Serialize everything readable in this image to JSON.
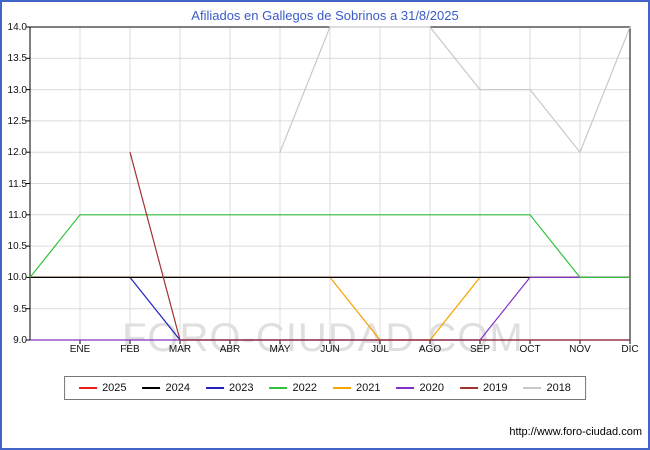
{
  "title": "Afiliados en Gallegos de Sobrinos a 31/8/2025",
  "watermark": "FORO-CIUDAD.COM",
  "footer_url": "http://www.foro-ciudad.com",
  "frame_color": "#4263c8",
  "title_color": "#3a5bc7",
  "chart_data": {
    "type": "line",
    "title": "Afiliados en Gallegos de Sobrinos a 31/8/2025",
    "x_categories": [
      "ENE",
      "FEB",
      "MAR",
      "ABR",
      "MAY",
      "JUN",
      "JUL",
      "AGO",
      "SEP",
      "OCT",
      "NOV",
      "DIC"
    ],
    "ylim": [
      9.0,
      14.0
    ],
    "ytick_step": 0.5,
    "ytick_labels": [
      "9.0",
      "9.5",
      "10.0",
      "10.5",
      "11.0",
      "11.5",
      "12.0",
      "12.5",
      "13.0",
      "13.5",
      "14.0"
    ],
    "grid": true,
    "legend_position": "bottom",
    "series": [
      {
        "name": "2025",
        "color": "#e81c1c",
        "start": 10,
        "values": [
          10,
          10,
          10,
          10,
          10,
          10,
          10,
          10,
          null,
          null,
          null,
          null
        ]
      },
      {
        "name": "2024",
        "color": "#000000",
        "start": 10,
        "values": [
          10,
          10,
          10,
          10,
          10,
          10,
          10,
          10,
          10,
          10,
          10,
          10
        ]
      },
      {
        "name": "2023",
        "color": "#2222c0",
        "start": 10,
        "values": [
          10,
          10,
          9,
          9,
          9,
          9,
          9,
          9,
          9,
          9,
          9,
          9
        ]
      },
      {
        "name": "2022",
        "color": "#33c03d",
        "start": 10,
        "values": [
          11,
          11,
          11,
          11,
          11,
          11,
          11,
          11,
          11,
          11,
          10,
          10
        ]
      },
      {
        "name": "2021",
        "color": "#f5a300",
        "start": 10,
        "values": [
          10,
          10,
          10,
          10,
          10,
          10,
          9,
          9,
          10,
          10,
          10,
          10
        ]
      },
      {
        "name": "2020",
        "color": "#8230c2",
        "start": 9,
        "values": [
          9,
          9,
          9,
          9,
          9,
          9,
          9,
          9,
          9,
          10,
          10,
          10
        ]
      },
      {
        "name": "2019",
        "color": "#a23232",
        "start": null,
        "values": [
          null,
          12,
          9,
          9,
          9,
          9,
          9,
          9,
          9,
          9,
          9,
          9
        ]
      },
      {
        "name": "2018",
        "color": "#c9c9c9",
        "start": null,
        "values": [
          null,
          null,
          null,
          null,
          12,
          14,
          14,
          14,
          13,
          13,
          12,
          14
        ]
      }
    ]
  }
}
